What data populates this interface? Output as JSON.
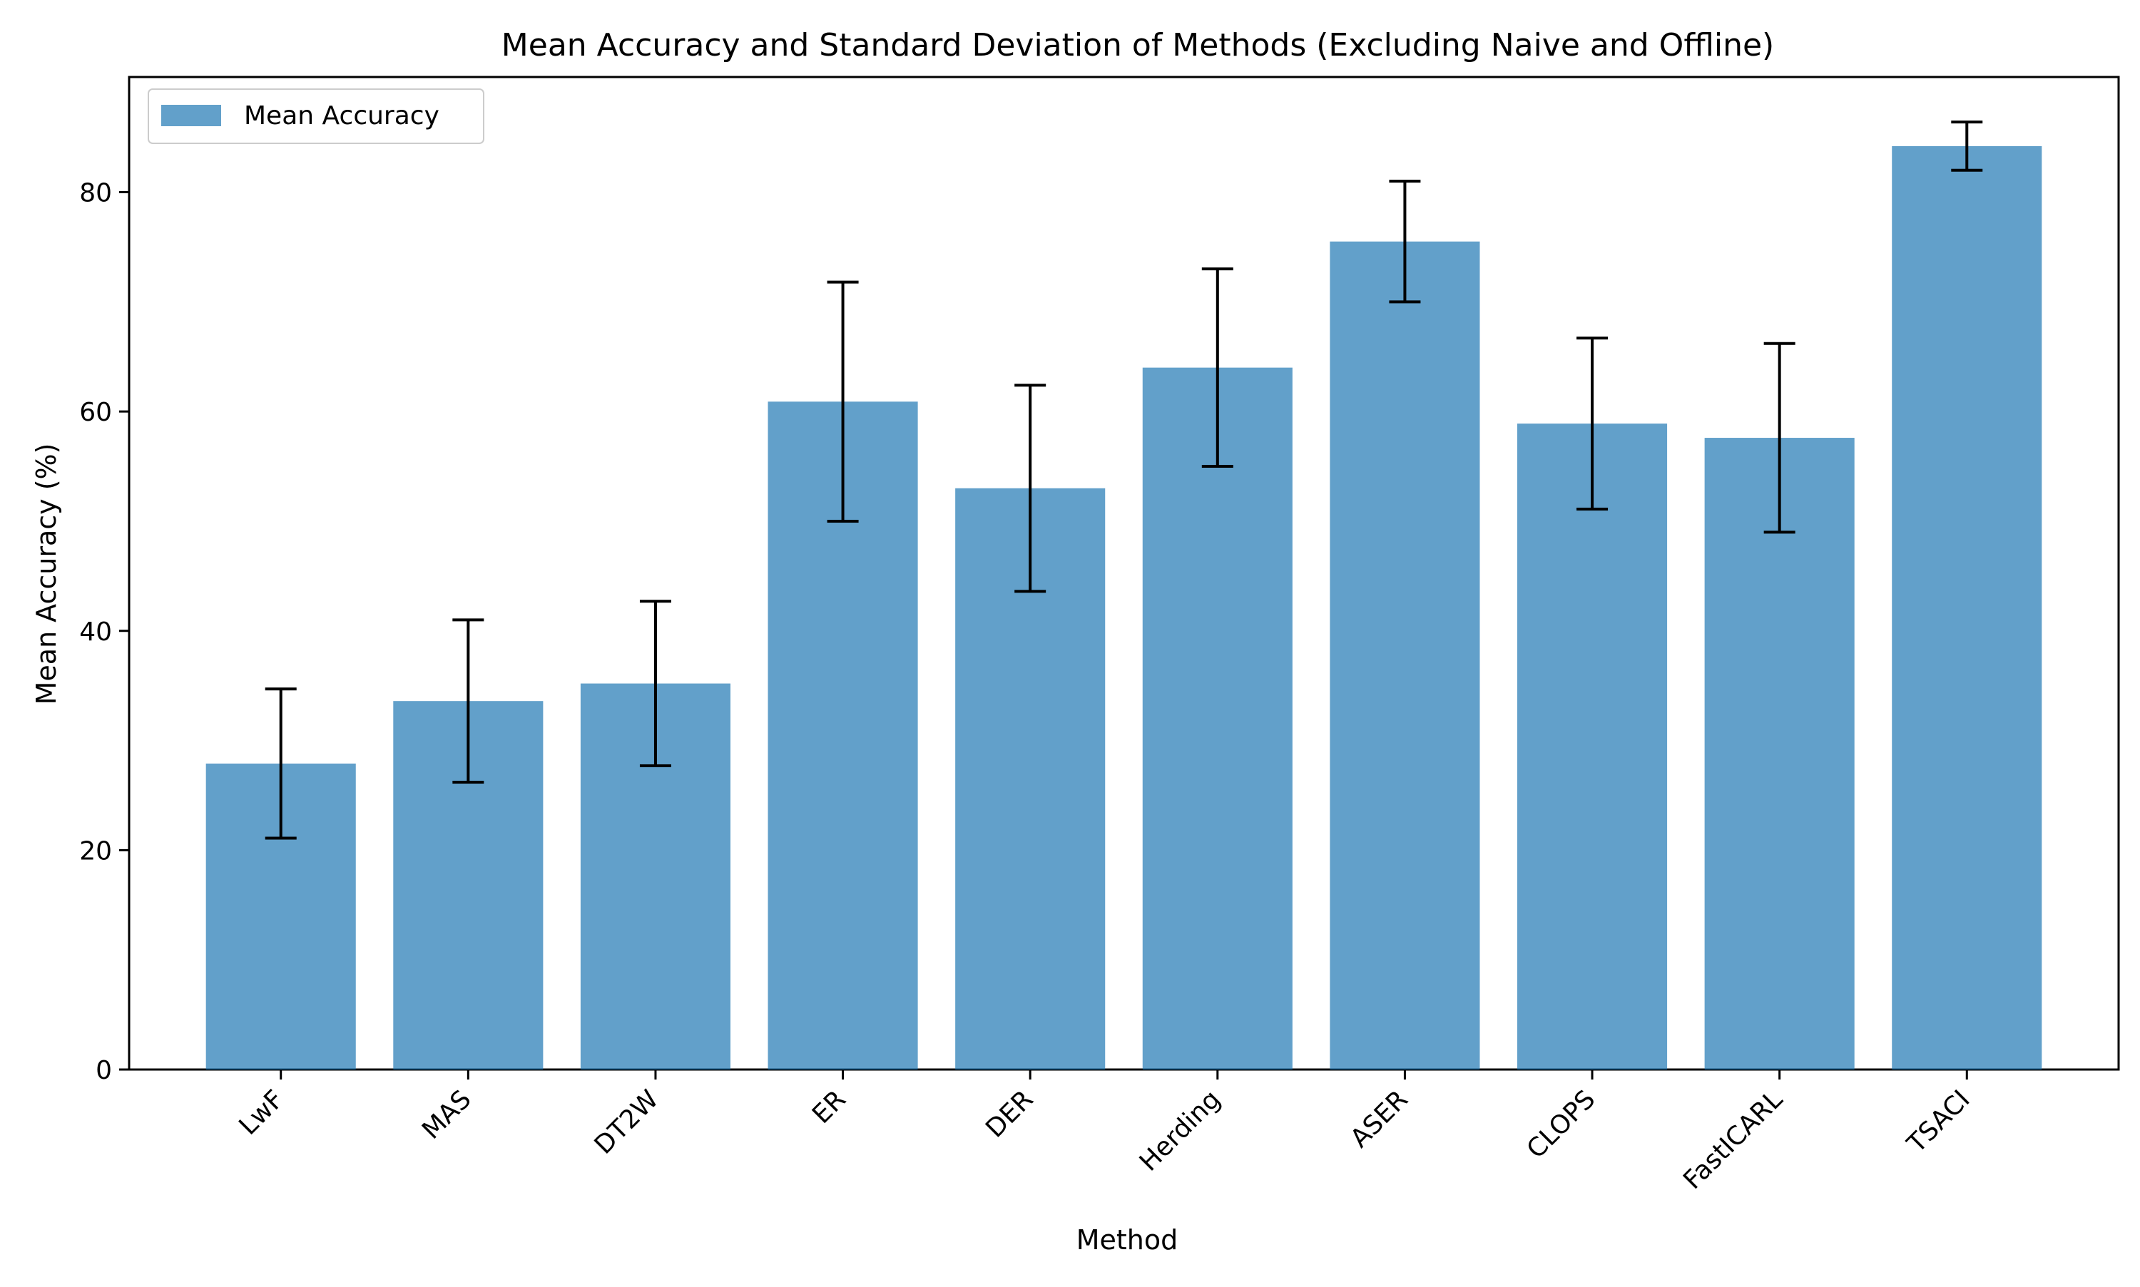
{
  "chart_data": {
    "type": "bar",
    "title": "Mean Accuracy and Standard Deviation of Methods (Excluding Naive and Offline)",
    "xlabel": "Method",
    "ylabel": "Mean Accuracy (%)",
    "categories": [
      "LwF",
      "MAS",
      "DT2W",
      "ER",
      "DER",
      "Herding",
      "ASER",
      "CLOPS",
      "FastICARL",
      "TSACI"
    ],
    "series": [
      {
        "name": "Mean Accuracy",
        "values": [
          27.9,
          33.6,
          35.2,
          60.9,
          53.0,
          64.0,
          75.5,
          58.9,
          57.6,
          84.2
        ],
        "std": [
          6.8,
          7.4,
          7.5,
          10.9,
          9.4,
          9.0,
          5.5,
          7.8,
          8.6,
          2.2
        ]
      }
    ],
    "ylim": [
      0,
      90.5
    ],
    "yticks": [
      0,
      20,
      40,
      60,
      80
    ],
    "grid": false,
    "legend_position": "upper-left",
    "colors": {
      "bar": "#1f77b4",
      "bar_opacity": 0.7,
      "error_bar": "#000000",
      "axes": "#000000"
    }
  }
}
